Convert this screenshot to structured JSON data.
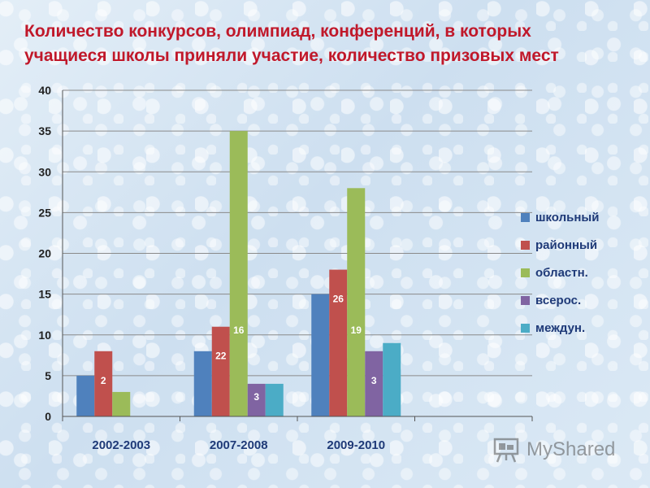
{
  "title": {
    "line1": "Количество конкурсов, олимпиад, конференций, в которых",
    "line2": "учащиеся школы приняли участие, количество призовых мест"
  },
  "chart_data": {
    "type": "bar",
    "categories": [
      "2002-2003",
      "2007-2008",
      "2009-2010"
    ],
    "series": [
      {
        "name": "школьный",
        "color": "#4f81bd",
        "values": [
          5,
          8,
          15
        ]
      },
      {
        "name": "районный",
        "color": "#c0504d",
        "values": [
          8,
          11,
          18
        ]
      },
      {
        "name": "областн.",
        "color": "#9bbb59",
        "values": [
          3,
          35,
          28
        ]
      },
      {
        "name": "всерос.",
        "color": "#8064a2",
        "values": [
          0,
          4,
          8
        ]
      },
      {
        "name": "междун.",
        "color": "#4bacc6",
        "values": [
          0,
          4,
          9
        ]
      }
    ],
    "data_labels": [
      {
        "category": 0,
        "series": 1,
        "text": "2"
      },
      {
        "category": 1,
        "series": 1,
        "text": "22"
      },
      {
        "category": 1,
        "series": 2,
        "text": "16"
      },
      {
        "category": 1,
        "series": 3,
        "text": "3"
      },
      {
        "category": 2,
        "series": 1,
        "text": "26"
      },
      {
        "category": 2,
        "series": 2,
        "text": "19"
      },
      {
        "category": 2,
        "series": 3,
        "text": "3"
      }
    ],
    "ylim": [
      0,
      40
    ],
    "yticks": [
      0,
      5,
      10,
      15,
      20,
      25,
      30,
      35,
      40
    ],
    "grid": true,
    "legend": "right"
  },
  "watermark": {
    "text": "MyShared",
    "icon": "presentation-board-icon"
  }
}
